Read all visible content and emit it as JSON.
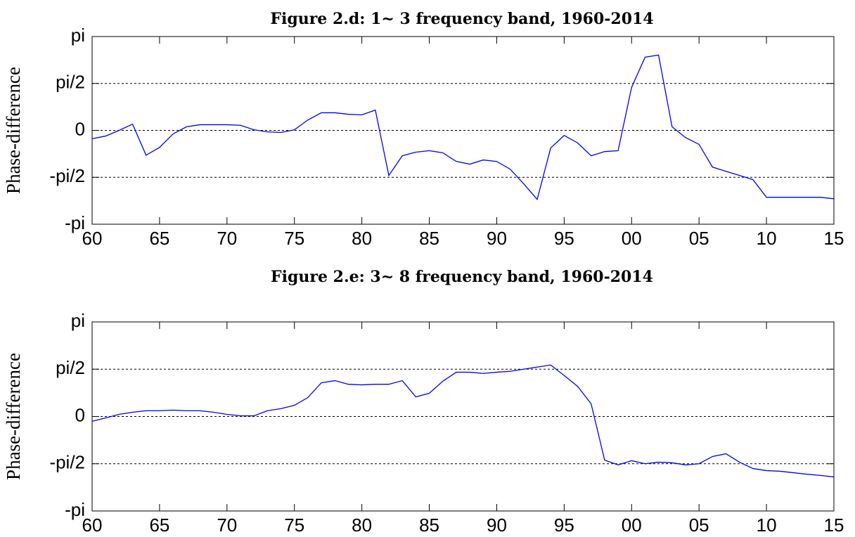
{
  "chart_data": [
    {
      "type": "line",
      "title": "Figure 2.d: 1~ 3 frequency band, 1960-2014",
      "ylabel": "Phase-difference",
      "x": [
        1960,
        1961,
        1962,
        1963,
        1964,
        1965,
        1966,
        1967,
        1968,
        1969,
        1970,
        1971,
        1972,
        1973,
        1974,
        1975,
        1976,
        1977,
        1978,
        1979,
        1980,
        1981,
        1982,
        1983,
        1984,
        1985,
        1986,
        1987,
        1988,
        1989,
        1990,
        1991,
        1992,
        1993,
        1994,
        1995,
        1996,
        1997,
        1998,
        1999,
        2000,
        2001,
        2002,
        2003,
        2004,
        2005,
        2006,
        2007,
        2008,
        2009,
        2010,
        2011,
        2012,
        2013,
        2014,
        2015
      ],
      "series": [
        {
          "color": "#0000ff",
          "values": [
            -0.28,
            -0.19,
            0.0,
            0.21,
            -0.83,
            -0.57,
            -0.12,
            0.12,
            0.19,
            0.19,
            0.19,
            0.17,
            0.02,
            -0.05,
            -0.07,
            0.02,
            0.35,
            0.59,
            0.59,
            0.54,
            0.52,
            0.68,
            -1.51,
            -0.85,
            -0.73,
            -0.68,
            -0.75,
            -1.04,
            -1.13,
            -0.99,
            -1.04,
            -1.3,
            -1.79,
            -2.31,
            -0.59,
            -0.17,
            -0.42,
            -0.85,
            -0.71,
            -0.68,
            1.44,
            2.45,
            2.52,
            0.12,
            -0.24,
            -0.47,
            -1.23,
            -1.37,
            -1.51,
            -1.65,
            -2.24,
            -2.24,
            -2.24,
            -2.24,
            -2.24,
            -2.29
          ]
        }
      ],
      "xlim": [
        1960,
        2015
      ],
      "xticks": [
        {
          "value": 1960,
          "label": "60"
        },
        {
          "value": 1965,
          "label": "65"
        },
        {
          "value": 1970,
          "label": "70"
        },
        {
          "value": 1975,
          "label": "75"
        },
        {
          "value": 1980,
          "label": "80"
        },
        {
          "value": 1985,
          "label": "85"
        },
        {
          "value": 1990,
          "label": "90"
        },
        {
          "value": 1995,
          "label": "95"
        },
        {
          "value": 2000,
          "label": "00"
        },
        {
          "value": 2005,
          "label": "05"
        },
        {
          "value": 2010,
          "label": "10"
        },
        {
          "value": 2015,
          "label": "15"
        }
      ],
      "ylim": [
        -3.1416,
        3.1416
      ],
      "yticks": [
        {
          "value": -3.1416,
          "label": "-pi"
        },
        {
          "value": -1.5708,
          "label": "-pi/2"
        },
        {
          "value": 0,
          "label": "0"
        },
        {
          "value": 1.5708,
          "label": "pi/2"
        },
        {
          "value": 3.1416,
          "label": "pi"
        }
      ],
      "grid": true
    },
    {
      "type": "line",
      "title": "Figure 2.e: 3~ 8 frequency band, 1960-2014",
      "ylabel": "Phase-difference",
      "x": [
        1960,
        1961,
        1962,
        1963,
        1964,
        1965,
        1966,
        1967,
        1968,
        1969,
        1970,
        1971,
        1972,
        1973,
        1974,
        1975,
        1976,
        1977,
        1978,
        1979,
        1980,
        1981,
        1982,
        1983,
        1984,
        1985,
        1986,
        1987,
        1988,
        1989,
        1990,
        1991,
        1992,
        1993,
        1994,
        1995,
        1996,
        1997,
        1998,
        1999,
        2000,
        2001,
        2002,
        2003,
        2004,
        2005,
        2006,
        2007,
        2008,
        2009,
        2010,
        2011,
        2012,
        2013,
        2014,
        2015
      ],
      "series": [
        {
          "color": "#0000ff",
          "values": [
            -0.16,
            -0.05,
            0.07,
            0.14,
            0.19,
            0.19,
            0.21,
            0.19,
            0.19,
            0.14,
            0.07,
            0.02,
            0.02,
            0.19,
            0.26,
            0.37,
            0.63,
            1.12,
            1.19,
            1.07,
            1.05,
            1.07,
            1.07,
            1.19,
            0.65,
            0.77,
            1.17,
            1.47,
            1.47,
            1.43,
            1.47,
            1.5,
            1.57,
            1.64,
            1.71,
            1.36,
            1.0,
            0.42,
            -1.45,
            -1.61,
            -1.47,
            -1.57,
            -1.52,
            -1.54,
            -1.61,
            -1.57,
            -1.33,
            -1.24,
            -1.52,
            -1.73,
            -1.8,
            -1.82,
            -1.87,
            -1.92,
            -1.96,
            -2.01
          ]
        }
      ],
      "xlim": [
        1960,
        2015
      ],
      "xticks": [
        {
          "value": 1960,
          "label": "60"
        },
        {
          "value": 1965,
          "label": "65"
        },
        {
          "value": 1970,
          "label": "70"
        },
        {
          "value": 1975,
          "label": "75"
        },
        {
          "value": 1980,
          "label": "80"
        },
        {
          "value": 1985,
          "label": "85"
        },
        {
          "value": 1990,
          "label": "90"
        },
        {
          "value": 1995,
          "label": "95"
        },
        {
          "value": 2000,
          "label": "00"
        },
        {
          "value": 2005,
          "label": "05"
        },
        {
          "value": 2010,
          "label": "10"
        },
        {
          "value": 2015,
          "label": "15"
        }
      ],
      "ylim": [
        -3.1416,
        3.1416
      ],
      "yticks": [
        {
          "value": -3.1416,
          "label": "-pi"
        },
        {
          "value": -1.5708,
          "label": "-pi/2"
        },
        {
          "value": 0,
          "label": "0"
        },
        {
          "value": 1.5708,
          "label": "pi/2"
        },
        {
          "value": 3.1416,
          "label": "pi"
        }
      ],
      "grid": true
    }
  ]
}
